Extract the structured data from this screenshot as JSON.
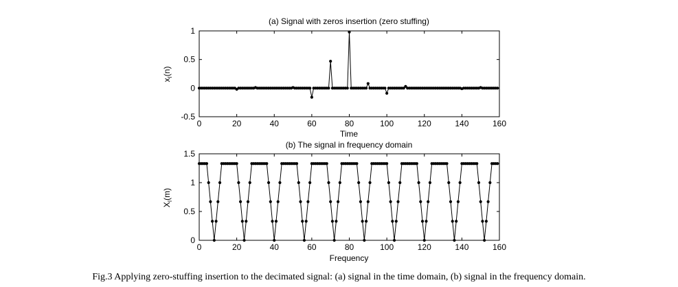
{
  "caption": "Fig.3  Applying zero-stuffing insertion to the decimated signal: (a) signal in the time domain, (b) signal in the frequency domain.",
  "colors": {
    "line": "#000000",
    "background": "#ffffff"
  },
  "chart_data": [
    {
      "type": "line",
      "marker": "dot",
      "title": "(a) Signal with zeros insertion (zero stuffing)",
      "xlabel": "Time",
      "ylabel_main": "x",
      "ylabel_sub": "I",
      "ylabel_tail": "(n)",
      "xlim": [
        0,
        160
      ],
      "ylim": [
        -0.5,
        1
      ],
      "xticks": [
        0,
        20,
        40,
        60,
        80,
        100,
        120,
        140,
        160
      ],
      "yticks": [
        -0.5,
        0,
        0.5,
        1
      ],
      "ytick_labels": [
        "-0.5",
        "0",
        "0.5",
        "1"
      ],
      "grid": false,
      "n_samples": 160,
      "nonzero_samples": [
        {
          "x": 20,
          "y": -0.02
        },
        {
          "x": 30,
          "y": 0.01
        },
        {
          "x": 50,
          "y": 0.01
        },
        {
          "x": 60,
          "y": -0.16
        },
        {
          "x": 70,
          "y": 0.47
        },
        {
          "x": 80,
          "y": 0.98
        },
        {
          "x": 90,
          "y": 0.08
        },
        {
          "x": 100,
          "y": -0.09
        },
        {
          "x": 110,
          "y": 0.03
        },
        {
          "x": 140,
          "y": -0.01
        },
        {
          "x": 150,
          "y": 0.01
        }
      ]
    },
    {
      "type": "line",
      "marker": "dot",
      "title": "(b) The signal in frequency domain",
      "xlabel": "Frequency",
      "ylabel_main": "X",
      "ylabel_sub": "I",
      "ylabel_tail": "(m)",
      "xlim": [
        0,
        160
      ],
      "ylim": [
        0,
        1.5
      ],
      "xticks": [
        0,
        20,
        40,
        60,
        80,
        100,
        120,
        140,
        160
      ],
      "yticks": [
        0,
        0.5,
        1,
        1.5
      ],
      "ytick_labels": [
        "0",
        "0.5",
        "1",
        "1.5"
      ],
      "grid": false,
      "n_samples": 160,
      "period": 16,
      "plateau_level": 1.33,
      "notch_centers": [
        8,
        24,
        40,
        56,
        72,
        88,
        104,
        120,
        136,
        152
      ],
      "notch_profile": [
        {
          "offset": -4,
          "y": 1.33
        },
        {
          "offset": -3,
          "y": 1.0
        },
        {
          "offset": -2,
          "y": 0.67
        },
        {
          "offset": -1,
          "y": 0.33
        },
        {
          "offset": 0,
          "y": 0.0
        },
        {
          "offset": 1,
          "y": 0.33
        },
        {
          "offset": 2,
          "y": 0.67
        },
        {
          "offset": 3,
          "y": 1.0
        },
        {
          "offset": 4,
          "y": 1.33
        }
      ]
    }
  ]
}
